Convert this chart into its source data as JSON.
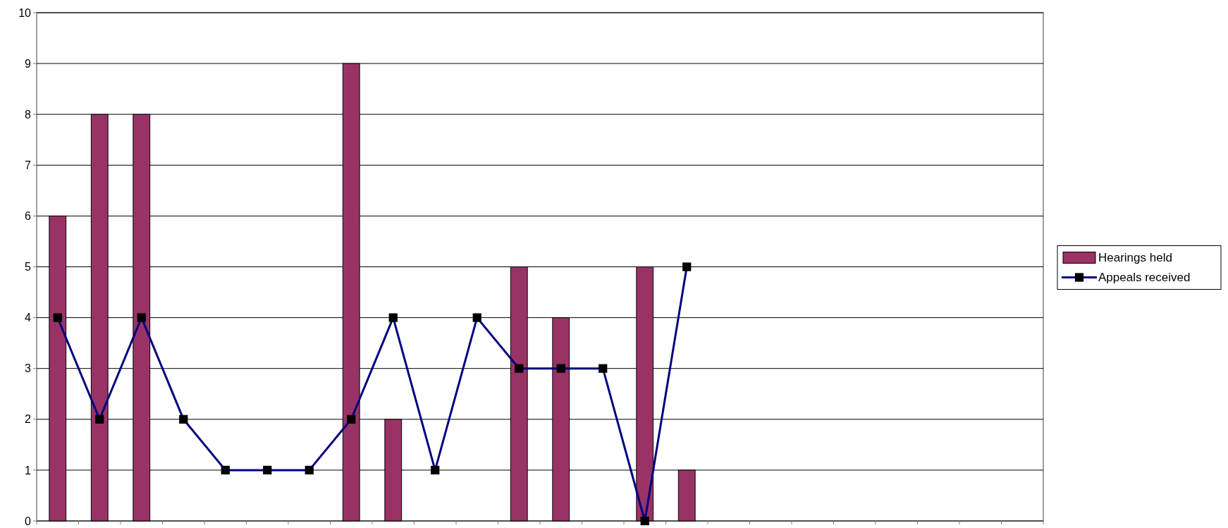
{
  "chart_data": {
    "type": "bar",
    "categories": [
      null,
      null,
      null,
      null,
      null,
      null,
      null,
      null,
      null,
      null,
      null,
      null,
      null,
      null,
      null,
      null,
      null,
      null,
      null,
      null,
      null,
      null,
      null,
      null
    ],
    "series": [
      {
        "name": "Hearings held",
        "color": "#993366",
        "values": [
          6,
          8,
          8,
          null,
          null,
          null,
          null,
          9,
          2,
          null,
          null,
          5,
          4,
          null,
          5,
          1,
          null,
          null,
          null,
          null,
          null,
          null,
          null,
          null
        ]
      },
      {
        "name": "Appeals received",
        "type": "line",
        "color": "#000080",
        "values": [
          4,
          2,
          4,
          2,
          1,
          1,
          1,
          2,
          4,
          1,
          4,
          3,
          3,
          3,
          0,
          5,
          null,
          null,
          null,
          null,
          null,
          null,
          null,
          null
        ]
      }
    ],
    "ylim": [
      0,
      10
    ],
    "yticks": [
      0,
      1,
      2,
      3,
      4,
      5,
      6,
      7,
      8,
      9,
      10
    ],
    "grid": "y",
    "legend": "right",
    "marker": "square"
  }
}
